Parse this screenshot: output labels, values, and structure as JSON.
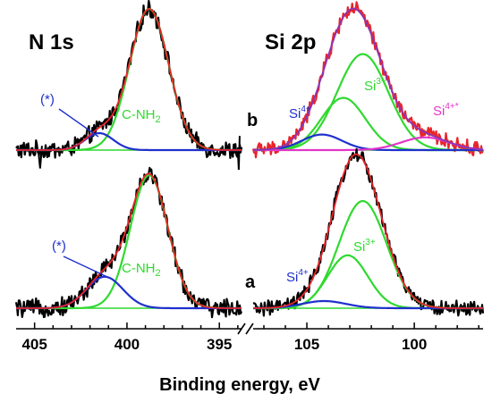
{
  "figure": {
    "xlabel": "Binding energy, eV",
    "n1s_title": "N 1s",
    "si2p_title": "Si 2p",
    "label_a": "a",
    "label_b": "b",
    "n1s_ticks": [
      "405",
      "400",
      "395"
    ],
    "si2p_ticks": [
      "105",
      "100"
    ]
  },
  "annotations": {
    "star": "(*)",
    "cnh": "C-NH",
    "cnh_sub": "2",
    "si": "Si",
    "si4_sup": "4+",
    "si3_sup": "3+",
    "si4star_sup": "4+*"
  },
  "colors": {
    "experimental": "#000000",
    "envelope_fit": "#e8252a",
    "experimental_b_si": "#e8252a",
    "envelope_b_si": "#8a35b8",
    "component_main": "#2fd92f",
    "component_minor": "#1f30cc",
    "component_si4star": "#e236c8"
  },
  "chart_data": [
    {
      "type": "line",
      "panel": "N 1s",
      "spectrum": "b",
      "x_range": [
        406,
        393.8
      ],
      "x_reversed": true,
      "series": [
        {
          "name": "C-NH2",
          "center": 398.8,
          "fwhm": 2.5,
          "amplitude": 1.0
        },
        {
          "name": "(*)",
          "center": 401.5,
          "fwhm": 1.8,
          "amplitude": 0.12
        }
      ]
    },
    {
      "type": "line",
      "panel": "Si 2p",
      "spectrum": "b",
      "x_range": [
        107.5,
        96.8
      ],
      "x_reversed": true,
      "series": [
        {
          "name": "Si3+",
          "center": 102.4,
          "fwhm": 2.8,
          "amplitude": 0.68
        },
        {
          "name": "Si3+",
          "center": 103.3,
          "fwhm": 2.4,
          "amplitude": 0.37
        },
        {
          "name": "Si4+",
          "center": 104.3,
          "fwhm": 2.2,
          "amplitude": 0.11
        },
        {
          "name": "Si4+*",
          "center": 99.5,
          "fwhm": 2.6,
          "amplitude": 0.09
        }
      ]
    },
    {
      "type": "line",
      "panel": "N 1s",
      "spectrum": "a",
      "x_range": [
        406,
        393.8
      ],
      "x_reversed": true,
      "series": [
        {
          "name": "C-NH2",
          "center": 398.8,
          "fwhm": 2.4,
          "amplitude": 0.93
        },
        {
          "name": "(*)",
          "center": 401.2,
          "fwhm": 2.3,
          "amplitude": 0.22
        }
      ]
    },
    {
      "type": "line",
      "panel": "Si 2p",
      "spectrum": "a",
      "x_range": [
        107.5,
        96.8
      ],
      "x_reversed": true,
      "series": [
        {
          "name": "Si3+",
          "center": 102.4,
          "fwhm": 2.6,
          "amplitude": 0.75
        },
        {
          "name": "Si3+",
          "center": 103.1,
          "fwhm": 2.2,
          "amplitude": 0.37
        },
        {
          "name": "Si4+",
          "center": 104.2,
          "fwhm": 2.4,
          "amplitude": 0.05
        }
      ]
    }
  ]
}
